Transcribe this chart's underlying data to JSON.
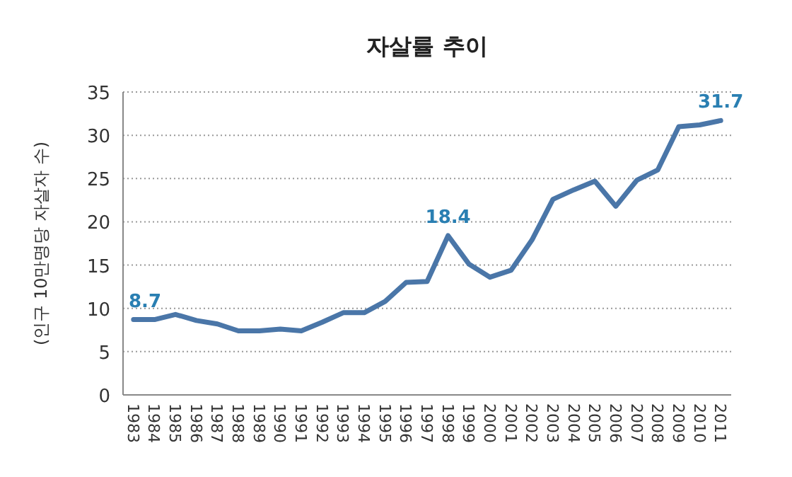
{
  "chart_data": {
    "type": "line",
    "title": "자살률 추이",
    "ylabel": "(인구 10만명당 자살자 수)",
    "categories": [
      "1983",
      "1984",
      "1985",
      "1986",
      "1987",
      "1988",
      "1989",
      "1990",
      "1991",
      "1992",
      "1993",
      "1994",
      "1995",
      "1996",
      "1997",
      "1998",
      "1999",
      "2000",
      "2001",
      "2002",
      "2003",
      "2004",
      "2005",
      "2006",
      "2007",
      "2008",
      "2009",
      "2010",
      "2011"
    ],
    "series": [
      {
        "color": "#4a76a8",
        "values": [
          8.7,
          8.7,
          9.3,
          8.6,
          8.2,
          7.4,
          7.4,
          7.6,
          7.4,
          8.4,
          9.5,
          9.5,
          10.8,
          13.0,
          13.1,
          18.4,
          15.1,
          13.6,
          14.4,
          17.9,
          22.6,
          23.7,
          24.7,
          21.8,
          24.8,
          26.0,
          31.0,
          31.2,
          31.7
        ],
        "value_labels": [
          "8.7",
          null,
          null,
          null,
          null,
          null,
          null,
          null,
          null,
          null,
          null,
          null,
          null,
          null,
          null,
          "18.4",
          null,
          null,
          null,
          null,
          null,
          null,
          null,
          null,
          null,
          null,
          null,
          null,
          "31.7"
        ]
      }
    ],
    "ylim": [
      0,
      35
    ],
    "yticks": [
      0,
      5,
      10,
      15,
      20,
      25,
      30,
      35
    ],
    "grid": "y",
    "marker": "none",
    "line_style": "solid"
  }
}
